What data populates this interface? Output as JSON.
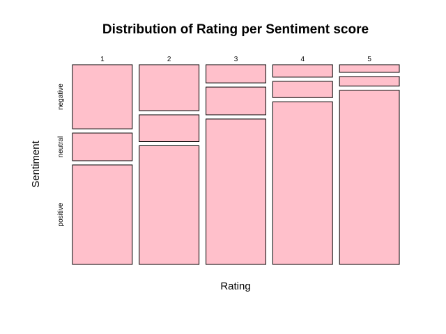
{
  "chart_data": {
    "type": "mosaic",
    "title": "Distribution of Rating per Sentiment score",
    "xlabel": "Rating",
    "ylabel": "Sentiment",
    "x_categories": [
      "1",
      "2",
      "3",
      "4",
      "5"
    ],
    "x_proportions": [
      0.2,
      0.2,
      0.2,
      0.2,
      0.2
    ],
    "y_categories": [
      "negative",
      "neutral",
      "positive"
    ],
    "conditional_proportions": [
      {
        "rating": "1",
        "negative": 0.335,
        "neutral": 0.145,
        "positive": 0.52
      },
      {
        "rating": "2",
        "negative": 0.24,
        "neutral": 0.14,
        "positive": 0.62
      },
      {
        "rating": "3",
        "negative": 0.095,
        "neutral": 0.145,
        "positive": 0.76
      },
      {
        "rating": "4",
        "negative": 0.065,
        "neutral": 0.085,
        "positive": 0.85
      },
      {
        "rating": "5",
        "negative": 0.04,
        "neutral": 0.05,
        "positive": 0.91
      }
    ],
    "fill_color": "#ffc0cb",
    "stroke_color": "#000000",
    "grid": false,
    "legend": "none"
  }
}
